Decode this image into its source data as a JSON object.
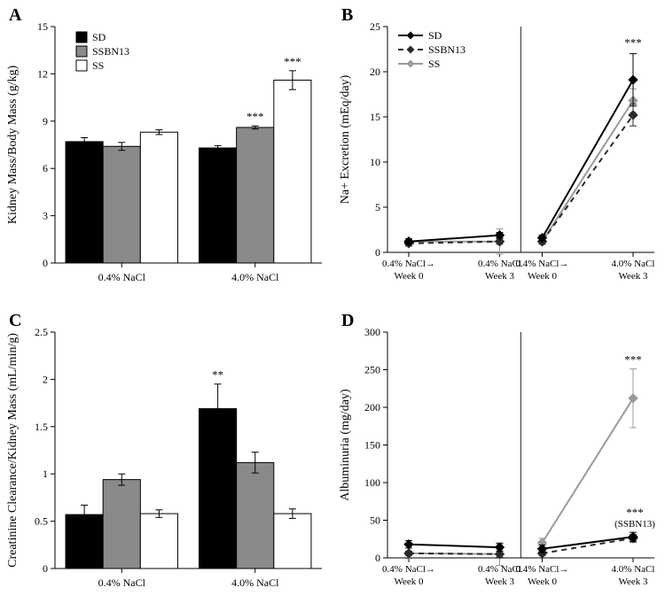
{
  "panels": {
    "A": "A",
    "B": "B",
    "C": "C",
    "D": "D"
  },
  "colors": {
    "SD": "#000000",
    "SSBN13": "#8a8a8a",
    "SS_bar": "#ffffff",
    "SS_line": "#9a9a9a",
    "axis": "#000000",
    "bg": "#ffffff",
    "bar_stroke": "#000000"
  },
  "series_labels": {
    "SD": "SD",
    "SSBN13": "SSBN13",
    "SS": "SS"
  },
  "A": {
    "type": "bar",
    "ylabel": "Kidney Mass/Body Mass (g/kg)",
    "ylim": [
      0,
      15
    ],
    "yticks": [
      0,
      3,
      6,
      9,
      12,
      15
    ],
    "groups": [
      "0.4% NaCl",
      "4.0% NaCl"
    ],
    "bars": {
      "0.4% NaCl": {
        "SD": {
          "val": 7.7,
          "err": 0.25,
          "sig": null
        },
        "SSBN13": {
          "val": 7.4,
          "err": 0.25,
          "sig": null
        },
        "SS": {
          "val": 8.3,
          "err": 0.15,
          "sig": null
        }
      },
      "4.0% NaCl": {
        "SD": {
          "val": 7.3,
          "err": 0.15,
          "sig": null
        },
        "SSBN13": {
          "val": 8.6,
          "err": 0.1,
          "sig": "***"
        },
        "SS": {
          "val": 11.6,
          "err": 0.6,
          "sig": "***"
        }
      }
    },
    "bar_width": 0.28
  },
  "B": {
    "type": "line",
    "ylabel": "Na+ Excretion (mEq/day)",
    "ylim": [
      0,
      25
    ],
    "yticks": [
      0,
      5,
      10,
      15,
      20,
      25
    ],
    "x_conditions": [
      {
        "top": "0.4% NaCl→",
        "bottom": "Week 0"
      },
      {
        "top": "0.4% NaCl",
        "bottom": "Week 3"
      },
      {
        "top": "0.4% NaCl→",
        "bottom": "Week 0"
      },
      {
        "top": "4.0% NaCl",
        "bottom": "Week 3"
      }
    ],
    "series": {
      "SD": {
        "vals": [
          1.2,
          1.9,
          1.6,
          19.1
        ],
        "errs": [
          0.3,
          0.3,
          0.3,
          2.9
        ],
        "style": "solid",
        "marker": "diamond"
      },
      "SSBN13": {
        "vals": [
          1.0,
          1.2,
          1.2,
          15.2
        ],
        "errs": [
          0.3,
          0.3,
          0.3,
          1.2
        ],
        "style": "dashed",
        "marker": "diamond"
      },
      "SS": {
        "vals": [
          1.2,
          1.2,
          1.2,
          16.8
        ],
        "errs": [
          0.3,
          1.4,
          0.3,
          1.3
        ],
        "style": "solid",
        "marker": "diamond"
      }
    },
    "sig": {
      "x": 3,
      "label": "***"
    }
  },
  "C": {
    "type": "bar",
    "ylabel": "Creatinine Clearance/Kidney Mass (mL/min/g)",
    "ylim": [
      0,
      2.5
    ],
    "yticks": [
      0,
      0.5,
      1,
      1.5,
      2,
      2.5
    ],
    "groups": [
      "0.4% NaCl",
      "4.0% NaCl"
    ],
    "bars": {
      "0.4% NaCl": {
        "SD": {
          "val": 0.57,
          "err": 0.1,
          "sig": null
        },
        "SSBN13": {
          "val": 0.94,
          "err": 0.06,
          "sig": null
        },
        "SS": {
          "val": 0.58,
          "err": 0.04,
          "sig": null
        }
      },
      "4.0% NaCl": {
        "SD": {
          "val": 1.69,
          "err": 0.26,
          "sig": "**"
        },
        "SSBN13": {
          "val": 1.12,
          "err": 0.11,
          "sig": null
        },
        "SS": {
          "val": 0.58,
          "err": 0.05,
          "sig": null
        }
      }
    },
    "bar_width": 0.28
  },
  "D": {
    "type": "line",
    "ylabel": "Albuminuria (mg/day)",
    "ylim": [
      0,
      300
    ],
    "yticks": [
      0,
      50,
      100,
      150,
      200,
      250,
      300
    ],
    "x_conditions": [
      {
        "top": "0.4% NaCl→",
        "bottom": "Week 0"
      },
      {
        "top": "0.4% NaCl",
        "bottom": "Week 3"
      },
      {
        "top": "0.4% NaCl→",
        "bottom": "Week 0"
      },
      {
        "top": "4.0% NaCl",
        "bottom": "Week 3"
      }
    ],
    "series": {
      "SD": {
        "vals": [
          18,
          14,
          12,
          28
        ],
        "errs": [
          5,
          5,
          5,
          6
        ],
        "style": "solid",
        "marker": "diamond"
      },
      "SSBN13": {
        "vals": [
          6,
          5,
          6,
          26
        ],
        "errs": [
          3,
          4,
          3,
          5
        ],
        "style": "dashed",
        "marker": "diamond"
      },
      "SS": {
        "vals": [
          6,
          5,
          20,
          212
        ],
        "errs": [
          7,
          15,
          6,
          39
        ],
        "style": "solid",
        "marker": "diamond"
      }
    },
    "sig": [
      {
        "x": 3,
        "label": "***",
        "sub": null
      },
      {
        "x": 3,
        "label": "***",
        "sub": "(SSBN13)",
        "low": true
      }
    ]
  },
  "line_legend": {
    "order": [
      "SD",
      "SSBN13",
      "SS"
    ]
  },
  "fontsize": {
    "axis_title": 14,
    "ticks": 12,
    "panel_label": 20,
    "legend": 12
  }
}
